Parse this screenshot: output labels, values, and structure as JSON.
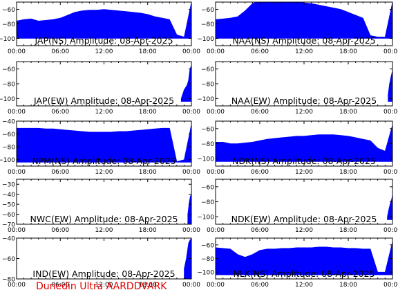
{
  "footer": {
    "text": "Dunedin Ultra AARDDVARK",
    "color": "#e00000"
  },
  "style": {
    "series_color": "#0000ff",
    "axis_color": "#000000",
    "background": "#ffffff"
  },
  "chart_data": [
    {
      "type": "area",
      "title": "JAP(NS) Amplitude: 08-Apr-2025",
      "ylim": [
        -110,
        -50
      ],
      "yticks": [
        -100,
        -80,
        -60
      ],
      "xticks": [
        "00:00",
        "06:00",
        "12:00",
        "18:00",
        "00:00"
      ],
      "series": {
        "x_hours": [
          0,
          1,
          2,
          3,
          4,
          5,
          6,
          7,
          8,
          9,
          10,
          11,
          12,
          13,
          14,
          15,
          16,
          17,
          18,
          19,
          20,
          21,
          22,
          23,
          24
        ],
        "top": [
          -76,
          -74,
          -73,
          -76,
          -75,
          -74,
          -72,
          -68,
          -64,
          -62,
          -61,
          -61,
          -60,
          -61,
          -62,
          -63,
          -64,
          -65,
          -67,
          -70,
          -72,
          -74,
          -95,
          -98,
          -50
        ],
        "bottom": [
          -100,
          -100,
          -100,
          -100,
          -100,
          -100,
          -100,
          -100,
          -100,
          -100,
          -100,
          -100,
          -100,
          -100,
          -100,
          -100,
          -100,
          -100,
          -100,
          -100,
          -100,
          -100,
          -100,
          -100,
          -100
        ]
      }
    },
    {
      "type": "area",
      "title": "NAA(NS) Amplitude: 08-Apr-2025",
      "ylim": [
        -110,
        -50
      ],
      "yticks": [
        -100,
        -80,
        -60
      ],
      "xticks": [
        "00:00",
        "06:00",
        "12:00",
        "18:00",
        "00:00"
      ],
      "series": {
        "x_hours": [
          0,
          1,
          2,
          3,
          4,
          5,
          6,
          7,
          8,
          9,
          10,
          11,
          12,
          13,
          14,
          15,
          16,
          17,
          18,
          19,
          20,
          21,
          22,
          23,
          24
        ],
        "top": [
          -74,
          -73,
          -72,
          -70,
          -62,
          -52,
          -48,
          -48,
          -48,
          -48,
          -49,
          -50,
          -51,
          -52,
          -54,
          -56,
          -58,
          -60,
          -64,
          -68,
          -72,
          -96,
          -98,
          -98,
          -50
        ],
        "bottom": [
          -100,
          -100,
          -100,
          -100,
          -100,
          -100,
          -100,
          -100,
          -100,
          -100,
          -100,
          -100,
          -100,
          -100,
          -100,
          -100,
          -100,
          -100,
          -100,
          -100,
          -100,
          -100,
          -100,
          -100,
          -100
        ]
      }
    },
    {
      "type": "area",
      "title": "JAP(EW) Amplitude: 08-Apr-2025",
      "ylim": [
        -110,
        -50
      ],
      "yticks": [
        -100,
        -80,
        -60
      ],
      "xticks": [
        "00:00",
        "06:00",
        "12:00",
        "18:00",
        "00:00"
      ],
      "series": {
        "x_hours": [
          22.6,
          23.0,
          23.4,
          23.6,
          23.8,
          24
        ],
        "top": [
          -100,
          -88,
          -82,
          -75,
          -60,
          -55
        ],
        "bottom": [
          -104,
          -104,
          -104,
          -104,
          -104,
          -104
        ]
      }
    },
    {
      "type": "area",
      "title": "NAA(EW) Amplitude: 08-Apr-2025",
      "ylim": [
        -110,
        -50
      ],
      "yticks": [
        -100,
        -80,
        -60
      ],
      "xticks": [
        "00:00",
        "06:00",
        "12:00",
        "18:00",
        "00:00"
      ],
      "series": {
        "x_hours": [
          23.4,
          23.6,
          23.8,
          24
        ],
        "top": [
          -95,
          -80,
          -70,
          -62
        ],
        "bottom": [
          -104,
          -104,
          -104,
          -104
        ]
      }
    },
    {
      "type": "area",
      "title": "NPM(NS) Amplitude: 08-Apr-2025",
      "ylim": [
        -110,
        -40
      ],
      "yticks": [
        -100,
        -80,
        -60,
        -40
      ],
      "xticks": [
        "00:00",
        "06:00",
        "12:00",
        "18:00",
        "00:00"
      ],
      "series": {
        "x_hours": [
          0,
          1,
          2,
          3,
          4,
          5,
          6,
          7,
          8,
          9,
          10,
          11,
          12,
          13,
          14,
          15,
          16,
          17,
          18,
          19,
          20,
          21,
          22,
          23,
          24
        ],
        "top": [
          -51,
          -51,
          -51,
          -51,
          -52,
          -52,
          -53,
          -54,
          -55,
          -56,
          -57,
          -57,
          -57,
          -57,
          -56,
          -56,
          -55,
          -54,
          -53,
          -52,
          -51,
          -51,
          -103,
          -100,
          -45
        ],
        "bottom": [
          -104,
          -104,
          -104,
          -104,
          -104,
          -104,
          -104,
          -104,
          -104,
          -104,
          -104,
          -104,
          -104,
          -104,
          -104,
          -104,
          -104,
          -104,
          -104,
          -104,
          -104,
          -104,
          -104,
          -104,
          -104
        ]
      }
    },
    {
      "type": "area",
      "title": "NDK(NS) Amplitude: 08-Apr-2025",
      "ylim": [
        -110,
        -50
      ],
      "yticks": [
        -100,
        -80,
        -60
      ],
      "xticks": [
        "00:00",
        "06:00",
        "12:00",
        "18:00",
        "00:00"
      ],
      "series": {
        "x_hours": [
          0,
          1,
          2,
          3,
          4,
          5,
          6,
          7,
          8,
          9,
          10,
          11,
          12,
          13,
          14,
          15,
          16,
          17,
          18,
          19,
          20,
          21,
          22,
          23,
          24
        ],
        "top": [
          -78,
          -78,
          -80,
          -80,
          -79,
          -78,
          -76,
          -74,
          -73,
          -72,
          -71,
          -70,
          -70,
          -69,
          -68,
          -68,
          -68,
          -69,
          -70,
          -72,
          -74,
          -76,
          -86,
          -90,
          -55
        ],
        "bottom": [
          -104,
          -104,
          -104,
          -104,
          -104,
          -104,
          -104,
          -104,
          -104,
          -104,
          -104,
          -104,
          -104,
          -104,
          -104,
          -104,
          -104,
          -104,
          -104,
          -104,
          -104,
          -104,
          -104,
          -104,
          -104
        ]
      }
    },
    {
      "type": "area",
      "title": "NWC(EW) Amplitude: 08-Apr-2025",
      "ylim": [
        -70,
        -25
      ],
      "yticks": [
        -70,
        -60,
        -50,
        -40,
        -30
      ],
      "xticks": [
        "00:00",
        "06:00",
        "12:00",
        "18:00",
        "00:00"
      ],
      "series": {
        "x_hours": [
          23.5,
          23.7,
          23.85,
          24
        ],
        "top": [
          -60,
          -48,
          -42,
          -40
        ],
        "bottom": [
          -70,
          -70,
          -70,
          -70
        ]
      }
    },
    {
      "type": "area",
      "title": "NDK(EW) Amplitude: 08-Apr-2025",
      "ylim": [
        -110,
        -50
      ],
      "yticks": [
        -100,
        -80,
        -60
      ],
      "xticks": [
        "00:00",
        "06:00",
        "12:00",
        "18:00",
        "00:00"
      ],
      "series": {
        "x_hours": [
          23.3,
          23.5,
          23.7,
          23.9,
          24
        ],
        "top": [
          -100,
          -90,
          -82,
          -76,
          -70
        ],
        "bottom": [
          -104,
          -104,
          -104,
          -104,
          -104
        ]
      }
    },
    {
      "type": "area",
      "title": "IND(EW) Amplitude: 08-Apr-2025",
      "ylim": [
        -80,
        -40
      ],
      "yticks": [
        -80,
        -60,
        -40
      ],
      "xticks": [
        "00:00",
        "06:00",
        "12:00",
        "18:00",
        "00:00"
      ],
      "series": {
        "x_hours": [
          23.0,
          23.3,
          23.6,
          23.8,
          24
        ],
        "top": [
          -70,
          -60,
          -45,
          -42,
          -40
        ],
        "bottom": [
          -80,
          -80,
          -80,
          -80,
          -80
        ]
      }
    },
    {
      "type": "area",
      "title": "NLK(NS) Amplitude: 08-Apr-2025",
      "ylim": [
        -110,
        -50
      ],
      "yticks": [
        -100,
        -80,
        -60
      ],
      "xticks": [
        "00:00",
        "06:00",
        "12:00",
        "18:00",
        "00:00"
      ],
      "series": {
        "x_hours": [
          0,
          1,
          2,
          3,
          4,
          5,
          6,
          7,
          8,
          9,
          10,
          11,
          12,
          13,
          14,
          15,
          16,
          17,
          18,
          19,
          20,
          21,
          22,
          23,
          24
        ],
        "top": [
          -64,
          -65,
          -66,
          -74,
          -78,
          -74,
          -68,
          -66,
          -66,
          -65,
          -65,
          -64,
          -64,
          -64,
          -63,
          -63,
          -64,
          -64,
          -65,
          -65,
          -66,
          -66,
          -100,
          -100,
          -55
        ],
        "bottom": [
          -104,
          -104,
          -104,
          -104,
          -104,
          -104,
          -104,
          -104,
          -104,
          -104,
          -104,
          -104,
          -104,
          -104,
          -104,
          -104,
          -104,
          -104,
          -104,
          -104,
          -104,
          -104,
          -104,
          -104,
          -104
        ]
      }
    }
  ]
}
